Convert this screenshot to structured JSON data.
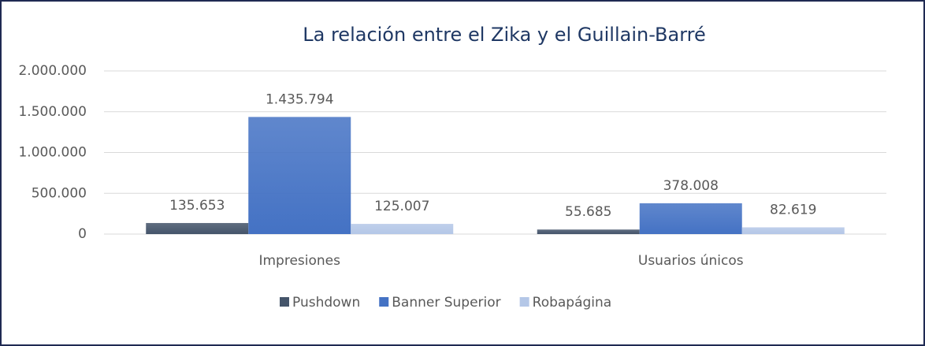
{
  "chart_data": {
    "type": "bar",
    "title": "La relación entre el Zika y el Guillain-Barré",
    "categories": [
      "Impresiones",
      "Usuarios únicos"
    ],
    "series": [
      {
        "name": "Pushdown",
        "color": "#44546a",
        "values": [
          135653,
          55685
        ],
        "value_labels": [
          "135.653",
          "55.685"
        ]
      },
      {
        "name": "Banner Superior",
        "color": "#4472c4",
        "values": [
          1435794,
          378008
        ],
        "value_labels": [
          "1.435.794",
          "378.008"
        ]
      },
      {
        "name": "Robapágina",
        "color": "#b4c7e7",
        "values": [
          125007,
          82619
        ],
        "value_labels": [
          "125.007",
          "82.619"
        ]
      }
    ],
    "ylim": [
      0,
      2000000
    ],
    "yticks": [
      0,
      {
        "value": 500000,
        "label": "500.000"
      },
      {
        "value": 1000000,
        "label": "1.000.000"
      },
      {
        "value": 1500000,
        "label": "1.500.000"
      },
      {
        "value": 2000000,
        "label": "2.000.000"
      }
    ],
    "grid": true,
    "legend": "bottom"
  }
}
